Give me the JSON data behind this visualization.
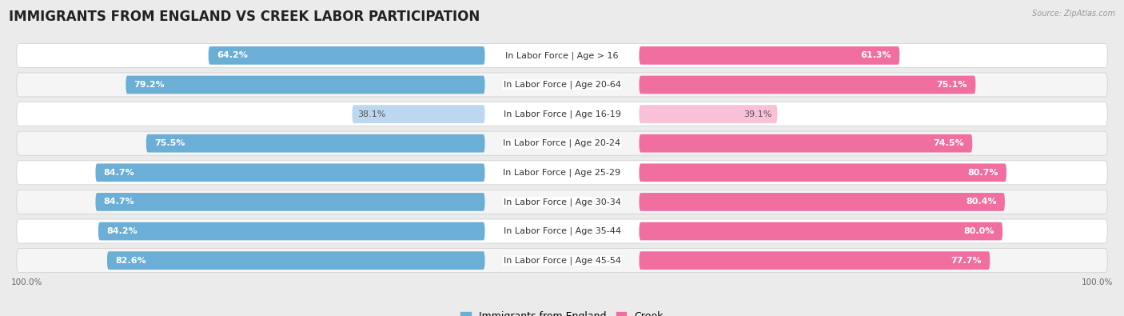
{
  "title": "IMMIGRANTS FROM ENGLAND VS CREEK LABOR PARTICIPATION",
  "source": "Source: ZipAtlas.com",
  "categories": [
    "In Labor Force | Age > 16",
    "In Labor Force | Age 20-64",
    "In Labor Force | Age 16-19",
    "In Labor Force | Age 20-24",
    "In Labor Force | Age 25-29",
    "In Labor Force | Age 30-34",
    "In Labor Force | Age 35-44",
    "In Labor Force | Age 45-54"
  ],
  "england_values": [
    64.2,
    79.2,
    38.1,
    75.5,
    84.7,
    84.7,
    84.2,
    82.6
  ],
  "creek_values": [
    61.3,
    75.1,
    39.1,
    74.5,
    80.7,
    80.4,
    80.0,
    77.7
  ],
  "england_color": "#6baed6",
  "england_color_light": "#bdd7ee",
  "creek_color": "#f06fa0",
  "creek_color_light": "#f9c0d8",
  "background_color": "#ebebeb",
  "row_bg_even": "#ffffff",
  "row_bg_odd": "#f5f5f5",
  "title_fontsize": 12,
  "label_fontsize": 8,
  "value_fontsize": 8,
  "legend_label_england": "Immigrants from England",
  "legend_label_creek": "Creek",
  "axis_max": 100.0
}
